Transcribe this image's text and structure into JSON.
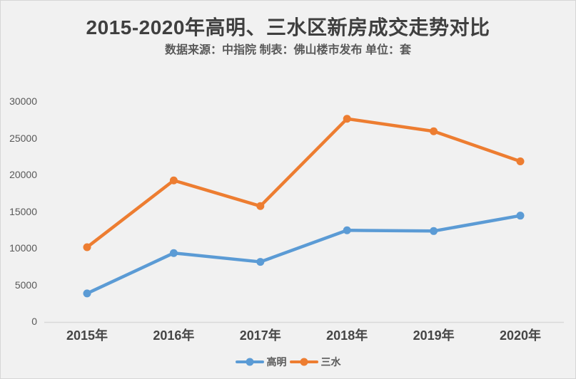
{
  "page": {
    "background_color": "#F1F1F1",
    "border_color": "#D6D6D6"
  },
  "header": {
    "title": "2015-2020年高明、三水区新房成交走势对比",
    "subtitle": "数据来源：中指院  制表：佛山楼市发布  单位：套"
  },
  "chart_data": {
    "type": "line",
    "title": "2015-2020年高明、三水区新房成交走势对比",
    "subtitle": "数据来源：中指院  制表：佛山楼市发布  单位：套",
    "unit": "套",
    "categories": [
      "2015年",
      "2016年",
      "2017年",
      "2018年",
      "2019年",
      "2020年"
    ],
    "series": [
      {
        "name": "高明",
        "color": "#5B9BD5",
        "values": [
          3800,
          9300,
          8100,
          12400,
          12300,
          14400
        ]
      },
      {
        "name": "三水",
        "color": "#ED7D31",
        "values": [
          10100,
          19200,
          15700,
          27600,
          25900,
          21800
        ]
      }
    ],
    "xlabel": "",
    "ylabel": "",
    "ylim": [
      0,
      30000
    ],
    "yticks": [
      0,
      5000,
      10000,
      15000,
      20000,
      25000,
      30000
    ],
    "grid": false,
    "legend_position": "bottom",
    "axis_color": "#D9D9D9",
    "tick_label_color": "#595959",
    "category_label_color": "#454545"
  }
}
